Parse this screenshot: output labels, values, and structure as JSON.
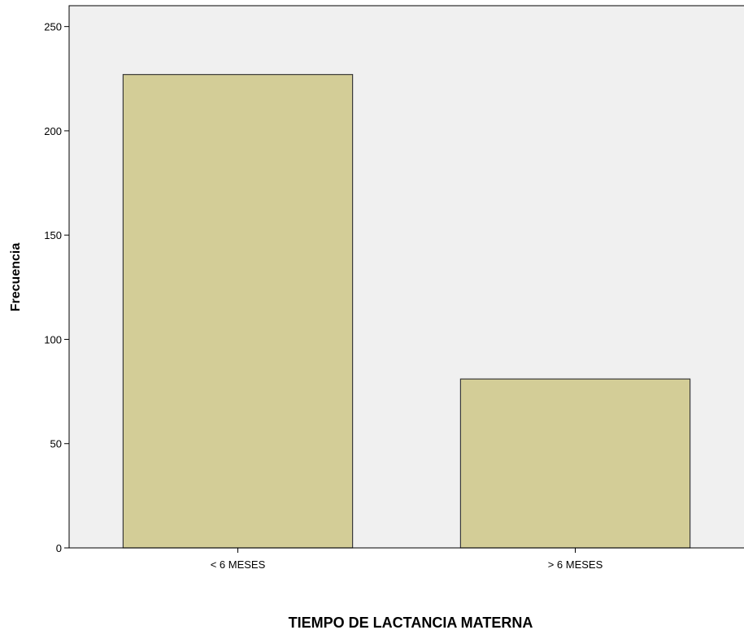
{
  "chart_data": {
    "type": "bar",
    "categories": [
      "< 6 MESES",
      "> 6 MESES"
    ],
    "values": [
      227,
      81
    ],
    "xlabel": "TIEMPO DE LACTANCIA MATERNA",
    "ylabel": "Frecuencia",
    "ylim": [
      0,
      260
    ],
    "yticks": [
      0,
      50,
      100,
      150,
      200,
      250
    ],
    "grid": false,
    "colors": {
      "plot_background": "#f0f0f0",
      "bar_fill": "#d3cd97",
      "bar_stroke": "#3a3a3a",
      "axis": "#000000"
    }
  }
}
